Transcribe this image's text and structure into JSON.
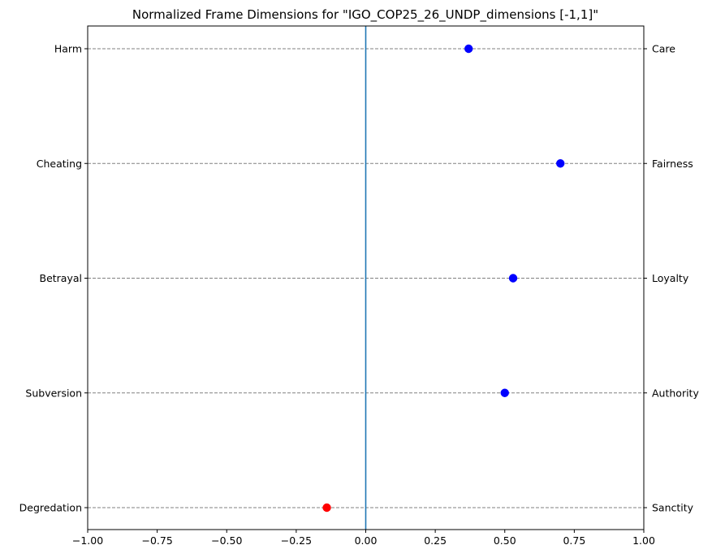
{
  "chart_data": {
    "type": "scatter",
    "title": "Normalized Frame Dimensions for \"IGO_COP25_26_UNDP_dimensions [-1,1]\"",
    "xlabel": "",
    "ylabel": "",
    "xlim": [
      -1,
      1
    ],
    "x_ticks": [
      -1.0,
      -0.75,
      -0.5,
      -0.25,
      0.0,
      0.25,
      0.5,
      0.75,
      1.0
    ],
    "x_tick_labels": [
      "−1.00",
      "−0.75",
      "−0.50",
      "−0.25",
      "0.00",
      "0.25",
      "0.50",
      "0.75",
      "1.00"
    ],
    "left_labels": [
      "Harm",
      "Cheating",
      "Betrayal",
      "Subversion",
      "Degredation"
    ],
    "right_labels": [
      "Care",
      "Fairness",
      "Loyalty",
      "Authority",
      "Sanctity"
    ],
    "values": [
      0.37,
      0.7,
      0.53,
      0.5,
      -0.14
    ],
    "positive_color": "#0000ff",
    "negative_color": "#ff0000",
    "zero_line_color": "#1f77b4",
    "grid": "horizontal dashed at each dimension",
    "legend": "none"
  }
}
